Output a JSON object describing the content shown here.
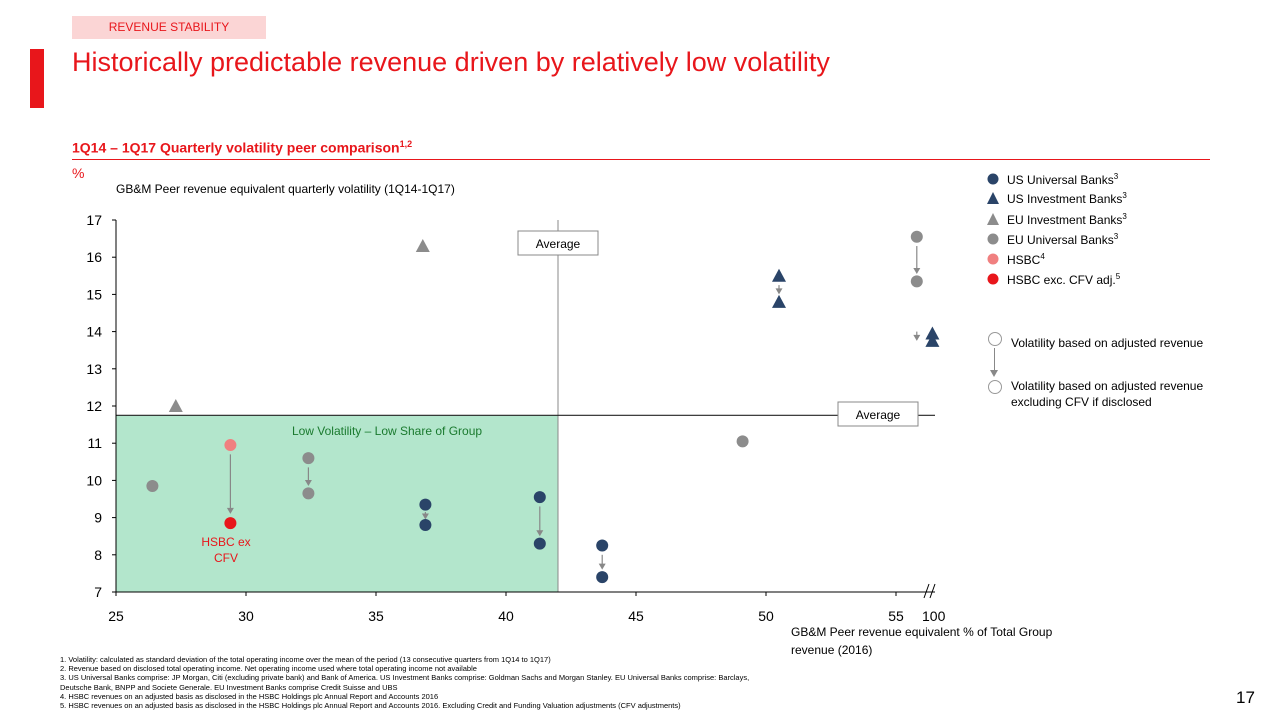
{
  "header": {
    "tag": "REVENUE STABILITY",
    "title": "Historically predictable revenue driven by relatively low volatility",
    "subtitle": "1Q14 – 1Q17 Quarterly volatility peer comparison",
    "subtitle_sup": "1,2",
    "unit": "%",
    "caption": "GB&M Peer revenue equivalent quarterly volatility (1Q14-1Q17)"
  },
  "legend": [
    {
      "label": "US Universal Banks",
      "sup": "3",
      "shape": "circle",
      "color": "#2a4468"
    },
    {
      "label": "US Investment Banks",
      "sup": "3",
      "shape": "triangle",
      "color": "#2a4468"
    },
    {
      "label": "EU Investment Banks",
      "sup": "3",
      "shape": "triangle",
      "color": "#8c8c8c"
    },
    {
      "label": "EU Universal Banks",
      "sup": "3",
      "shape": "circle",
      "color": "#8c8c8c"
    },
    {
      "label": "HSBC",
      "sup": "4",
      "shape": "circle",
      "color": "#f08080"
    },
    {
      "label": "HSBC exc. CFV adj.",
      "sup": "5",
      "shape": "circle",
      "color": "#e8161b"
    }
  ],
  "volatility_key": {
    "adjusted": "Volatility based on adjusted revenue",
    "excluding_line1": "Volatility based on adjusted revenue",
    "excluding_line2": "excluding CFV if disclosed"
  },
  "chart_data": {
    "type": "scatter",
    "xlabel": "GB&M Peer revenue equivalent % of Total Group revenue (2016)",
    "ylabel": "GB&M Peer revenue equivalent quarterly volatility (1Q14-1Q17)",
    "xlim": [
      25,
      56
    ],
    "ylim": [
      7,
      17
    ],
    "x_ticks": [
      "25",
      "30",
      "35",
      "40",
      "45",
      "50",
      "55"
    ],
    "x_break_tick": "100",
    "y_ticks": [
      "7",
      "8",
      "9",
      "10",
      "11",
      "12",
      "13",
      "14",
      "15",
      "16",
      "17"
    ],
    "average_x": 42,
    "average_y": 11.75,
    "average_label": "Average",
    "region_label": "Low Volatility – Low Share of Group",
    "region_color": "#b3e6cc",
    "hsbc_label_line1": "HSBC  ex",
    "hsbc_label_line2": "CFV",
    "points": [
      {
        "series": "EU Universal Banks",
        "x": 26.4,
        "y": 9.85
      },
      {
        "series": "EU Investment Banks",
        "x": 27.3,
        "y": 12.0
      },
      {
        "series": "HSBC",
        "x": 29.4,
        "y": 10.95
      },
      {
        "series": "HSBC exc. CFV adj.",
        "x": 29.4,
        "y": 8.85
      },
      {
        "series": "EU Universal Banks",
        "x": 32.4,
        "y": 10.6
      },
      {
        "series": "EU Universal Banks",
        "x": 32.4,
        "y": 9.65
      },
      {
        "series": "EU Investment Banks",
        "x": 36.8,
        "y": 16.3
      },
      {
        "series": "US Universal Banks",
        "x": 36.9,
        "y": 9.35
      },
      {
        "series": "US Universal Banks",
        "x": 36.9,
        "y": 8.8
      },
      {
        "series": "US Universal Banks",
        "x": 41.3,
        "y": 9.55
      },
      {
        "series": "US Universal Banks",
        "x": 41.3,
        "y": 8.3
      },
      {
        "series": "US Universal Banks",
        "x": 43.7,
        "y": 8.25
      },
      {
        "series": "US Universal Banks",
        "x": 43.7,
        "y": 7.4
      },
      {
        "series": "EU Universal Banks",
        "x": 49.1,
        "y": 11.05
      },
      {
        "series": "US Investment Banks",
        "x": 50.5,
        "y": 15.5
      },
      {
        "series": "US Investment Banks",
        "x": 50.5,
        "y": 14.8
      },
      {
        "series": "EU Universal Banks",
        "x": 55.8,
        "y": 16.55
      },
      {
        "series": "EU Universal Banks",
        "x": 55.8,
        "y": 15.35
      },
      {
        "series": "US Investment Banks",
        "x": 56.4,
        "y": 13.95
      },
      {
        "series": "US Investment Banks",
        "x": 56.4,
        "y": 13.75
      }
    ],
    "arrows": [
      {
        "x": 29.4,
        "y1": 10.7,
        "y2": 9.1
      },
      {
        "x": 32.4,
        "y1": 10.35,
        "y2": 9.85
      },
      {
        "x": 36.9,
        "y1": 9.15,
        "y2": 8.95
      },
      {
        "x": 41.3,
        "y1": 9.3,
        "y2": 8.5
      },
      {
        "x": 43.7,
        "y1": 8.0,
        "y2": 7.6
      },
      {
        "x": 50.5,
        "y1": 15.25,
        "y2": 15.0
      },
      {
        "x": 55.8,
        "y1": 16.3,
        "y2": 15.55
      },
      {
        "x": 55.8,
        "y1": 14.0,
        "y2": 13.75
      }
    ]
  },
  "footnotes": [
    "1.   Volatility: calculated as standard deviation of the total operating income over the mean of the period (13 consecutive quarters from 1Q14 to 1Q17)",
    "2.   Revenue based on disclosed total operating income. Net operating income used where total operating income not available",
    "3.   US Universal Banks comprise: JP Morgan, Citi (excluding private bank) and Bank of America. US Investment Banks comprise: Goldman Sachs and Morgan Stanley. EU Universal Banks comprise: Barclays,",
    "      Deutsche Bank, BNPP and Societe Generale. EU Investment Banks comprise Credit Suisse and UBS",
    "4.   HSBC revenues on an adjusted basis as disclosed in the HSBC Holdings plc Annual Report and Accounts 2016",
    "5.   HSBC revenues on an adjusted basis as disclosed in the HSBC Holdings plc Annual Report and Accounts 2016. Excluding Credit and Funding Valuation adjustments (CFV adjustments)"
  ],
  "page_number": "17"
}
